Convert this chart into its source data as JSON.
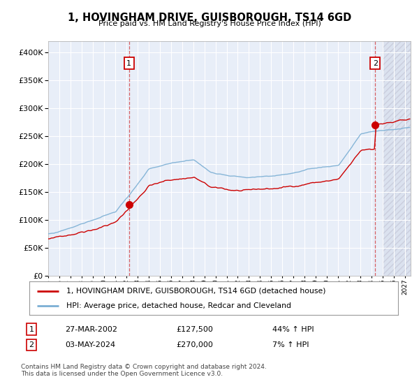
{
  "title": "1, HOVINGHAM DRIVE, GUISBOROUGH, TS14 6GD",
  "subtitle": "Price paid vs. HM Land Registry's House Price Index (HPI)",
  "legend_line1": "1, HOVINGHAM DRIVE, GUISBOROUGH, TS14 6GD (detached house)",
  "legend_line2": "HPI: Average price, detached house, Redcar and Cleveland",
  "table_row1_num": "1",
  "table_row1_date": "27-MAR-2002",
  "table_row1_price": "£127,500",
  "table_row1_hpi": "44% ↑ HPI",
  "table_row2_num": "2",
  "table_row2_date": "03-MAY-2024",
  "table_row2_price": "£270,000",
  "table_row2_hpi": "7% ↑ HPI",
  "footer": "Contains HM Land Registry data © Crown copyright and database right 2024.\nThis data is licensed under the Open Government Licence v3.0.",
  "sale1_year": 2002.25,
  "sale1_price": 127500,
  "sale2_year": 2024.33,
  "sale2_price": 270000,
  "hpi_color": "#7bafd4",
  "price_color": "#cc0000",
  "background_plot": "#e8eef8",
  "background_fig": "#ffffff",
  "ylim": [
    0,
    420000
  ],
  "xlim_start": 1995.0,
  "xlim_end": 2027.5,
  "future_start": 2025.0
}
